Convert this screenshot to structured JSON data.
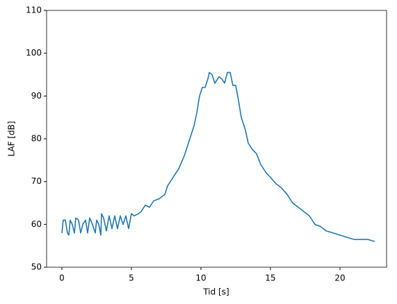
{
  "chart_data": {
    "type": "line",
    "x_label": "Tid [s]",
    "y_label": "LAF [dB]",
    "x": [
      0,
      0.1,
      0.25,
      0.4,
      0.5,
      0.6,
      0.75,
      0.9,
      1.0,
      1.2,
      1.35,
      1.5,
      1.7,
      1.85,
      2.0,
      2.2,
      2.4,
      2.5,
      2.65,
      2.8,
      2.85,
      3.0,
      3.2,
      3.4,
      3.6,
      3.8,
      4.0,
      4.2,
      4.4,
      4.6,
      4.8,
      5.0,
      5.2,
      5.5,
      5.7,
      6.0,
      6.3,
      6.6,
      7.0,
      7.4,
      7.6,
      8.0,
      8.4,
      8.8,
      9.0,
      9.2,
      9.5,
      9.7,
      9.9,
      10.1,
      10.3,
      10.5,
      10.6,
      10.8,
      11.0,
      11.3,
      11.5,
      11.7,
      11.9,
      12.1,
      12.3,
      12.5,
      12.7,
      12.9,
      13.2,
      13.4,
      13.7,
      14.0,
      14.3,
      14.7,
      15.0,
      15.4,
      15.8,
      16.2,
      16.6,
      17.0,
      17.4,
      17.8,
      18.2,
      18.6,
      19.0,
      19.5,
      20.0,
      20.5,
      21.0,
      21.5,
      22.0,
      22.5
    ],
    "values": [
      58,
      61,
      61,
      58,
      57.5,
      61,
      60,
      58,
      61.5,
      61,
      58,
      60,
      61,
      58,
      61.5,
      60,
      58,
      61,
      60,
      57.5,
      62.5,
      61.5,
      58.5,
      62,
      59,
      62,
      59,
      62,
      60,
      62,
      59,
      62.5,
      62,
      62.5,
      63,
      64.5,
      64,
      65.5,
      66,
      67,
      69,
      71,
      73,
      76,
      78,
      80,
      83,
      86,
      90,
      92,
      92,
      94,
      95.5,
      95,
      93,
      94.5,
      94,
      93,
      95.5,
      95.5,
      92.5,
      92.5,
      89,
      85,
      82,
      79,
      77.5,
      76.5,
      74,
      72,
      71,
      69.5,
      68.5,
      67,
      65,
      64,
      63,
      62,
      60,
      59.5,
      58.5,
      58,
      57.5,
      57,
      56.5,
      56.5,
      56.5,
      56
    ],
    "color": "#1f77b4",
    "xlim": [
      -1.1,
      23.35
    ],
    "xticks": [
      0,
      5,
      10,
      15,
      20
    ],
    "ylim": [
      50,
      110
    ],
    "yticks": [
      50,
      60,
      70,
      80,
      90,
      100,
      110
    ]
  }
}
